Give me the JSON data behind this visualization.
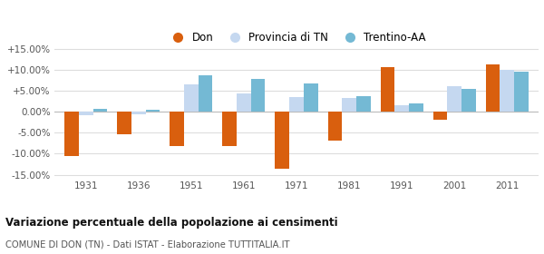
{
  "years": [
    1931,
    1936,
    1951,
    1961,
    1971,
    1981,
    1991,
    2001,
    2011
  ],
  "don": [
    -10.5,
    -5.3,
    -8.2,
    -8.2,
    -13.5,
    -6.8,
    10.7,
    -1.8,
    11.2
  ],
  "provincia": [
    -0.8,
    -0.5,
    6.5,
    4.3,
    3.5,
    3.2,
    1.5,
    6.0,
    10.0
  ],
  "trentino": [
    0.8,
    0.4,
    8.8,
    7.8,
    6.8,
    3.7,
    2.0,
    5.5,
    9.5
  ],
  "don_color": "#d95f0e",
  "provincia_color": "#c5d8f0",
  "trentino_color": "#74b9d4",
  "bg_color": "#ffffff",
  "grid_color": "#dddddd",
  "ylim_min": -15.75,
  "ylim_max": 15.75,
  "yticks": [
    -15,
    -10,
    -5,
    0,
    5,
    10,
    15
  ],
  "ytick_labels": [
    "-15.00%",
    "-10.00%",
    "-5.00%",
    "0.00%",
    "+5.00%",
    "+10.00%",
    "+15.00%"
  ],
  "title": "Variazione percentuale della popolazione ai censimenti",
  "subtitle": "COMUNE DI DON (TN) - Dati ISTAT - Elaborazione TUTTITALIA.IT",
  "legend_labels": [
    "Don",
    "Provincia di TN",
    "Trentino-AA"
  ],
  "bar_width": 0.27
}
